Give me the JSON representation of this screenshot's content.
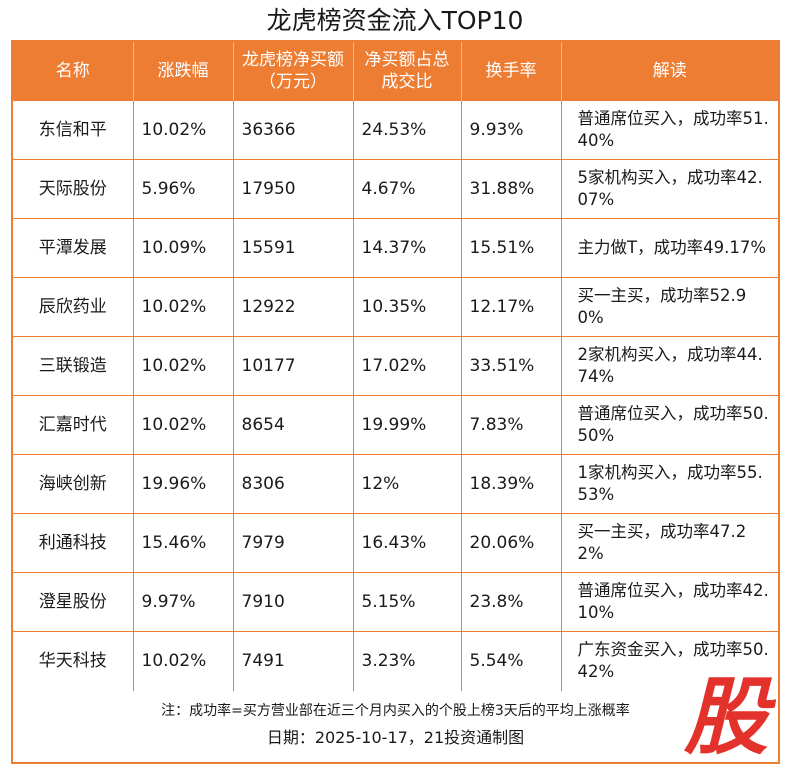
{
  "title": "龙虎榜资金流入TOP10",
  "headers": [
    "名称",
    "涨跌幅",
    "龙虎榜净买额（万元）",
    "净买额占总成交比",
    "换手率",
    "解读"
  ],
  "rows": [
    {
      "name": "东信和平",
      "change": "10.02%",
      "net_buy": "36366",
      "ratio": "24.53%",
      "turnover": "9.93%",
      "interp": "普通席位买入，成功率51.40%"
    },
    {
      "name": "天际股份",
      "change": "5.96%",
      "net_buy": "17950",
      "ratio": "4.67%",
      "turnover": "31.88%",
      "interp": "5家机构买入，成功率42.07%"
    },
    {
      "name": "平潭发展",
      "change": "10.09%",
      "net_buy": "15591",
      "ratio": "14.37%",
      "turnover": "15.51%",
      "interp": "主力做T，成功率49.17%"
    },
    {
      "name": "辰欣药业",
      "change": "10.02%",
      "net_buy": "12922",
      "ratio": "10.35%",
      "turnover": "12.17%",
      "interp": "买一主买，成功率52.90%"
    },
    {
      "name": "三联锻造",
      "change": "10.02%",
      "net_buy": "10177",
      "ratio": "17.02%",
      "turnover": "33.51%",
      "interp": "2家机构买入，成功率44.74%"
    },
    {
      "name": "汇嘉时代",
      "change": "10.02%",
      "net_buy": "8654",
      "ratio": "19.99%",
      "turnover": "7.83%",
      "interp": "普通席位买入，成功率50.50%"
    },
    {
      "name": "海峡创新",
      "change": "19.96%",
      "net_buy": "8306",
      "ratio": "12%",
      "turnover": "18.39%",
      "interp": "1家机构买入，成功率55.53%"
    },
    {
      "name": "利通科技",
      "change": "15.46%",
      "net_buy": "7979",
      "ratio": "16.43%",
      "turnover": "20.06%",
      "interp": "买一主买，成功率47.22%"
    },
    {
      "name": "澄星股份",
      "change": "9.97%",
      "net_buy": "7910",
      "ratio": "5.15%",
      "turnover": "23.8%",
      "interp": "普通席位买入，成功率42.10%"
    },
    {
      "name": "华天科技",
      "change": "10.02%",
      "net_buy": "7491",
      "ratio": "3.23%",
      "turnover": "5.54%",
      "interp": "广东资金买入，成功率50.42%"
    }
  ],
  "note": "注：成功率=买方营业部在近三个月内买入的个股上榜3天后的平均上涨概率",
  "date_line": "日期：2025-10-17，21投资通制图",
  "stamp": "股",
  "colors": {
    "header_bg": "#ee7d34",
    "border": "#ee7d34",
    "stamp": "#e3322b"
  }
}
